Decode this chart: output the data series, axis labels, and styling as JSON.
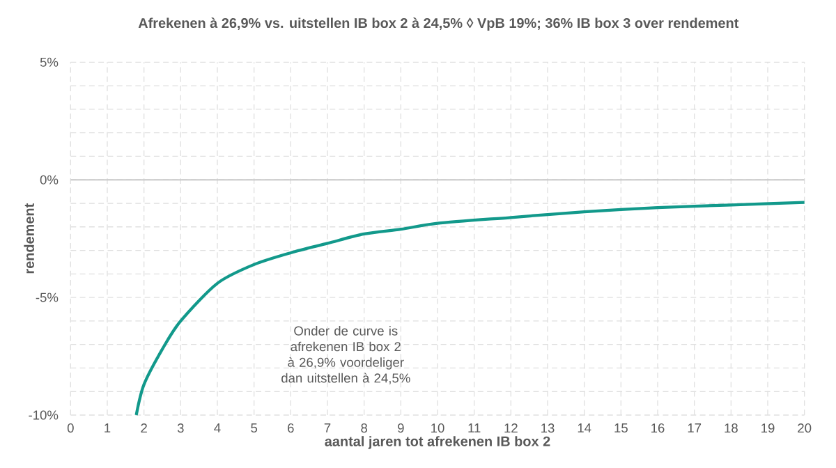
{
  "chart_data": {
    "type": "line",
    "title": "Afrekenen à 26,9% vs. uitstellen IB box 2 à 24,5% ◊ VpB 19%; 36% IB box 3 over rendement",
    "xlabel": "aantal jaren tot afrekenen IB box 2",
    "ylabel": "rendement",
    "x": [
      1.79,
      2,
      2.5,
      3,
      4,
      5,
      6,
      7,
      8,
      9,
      10,
      12,
      14,
      16,
      18,
      20
    ],
    "series": [
      {
        "color": "#12998b",
        "values": [
          -10,
          -8.7,
          -7.2,
          -6.0,
          -4.4,
          -3.6,
          -3.1,
          -2.7,
          -2.3,
          -2.1,
          -1.85,
          -1.6,
          -1.36,
          -1.18,
          -1.07,
          -0.96
        ]
      }
    ],
    "xlim": [
      0,
      20
    ],
    "ylim": [
      -10,
      5
    ],
    "xticks": [
      0,
      1,
      2,
      3,
      4,
      5,
      6,
      7,
      8,
      9,
      10,
      11,
      12,
      13,
      14,
      15,
      16,
      17,
      18,
      19,
      20
    ],
    "yticks": [
      {
        "value": -10,
        "label": "-10%"
      },
      {
        "value": -9,
        "label": null
      },
      {
        "value": -8,
        "label": null
      },
      {
        "value": -7,
        "label": null
      },
      {
        "value": -6,
        "label": null
      },
      {
        "value": -5,
        "label": "-5%"
      },
      {
        "value": -4,
        "label": null
      },
      {
        "value": -3,
        "label": null
      },
      {
        "value": -2,
        "label": null
      },
      {
        "value": -1,
        "label": null
      },
      {
        "value": 0,
        "label": "0%"
      },
      {
        "value": 1,
        "label": null
      },
      {
        "value": 2,
        "label": null
      },
      {
        "value": 3,
        "label": null
      },
      {
        "value": 4,
        "label": null
      },
      {
        "value": 5,
        "label": "5%"
      }
    ],
    "grid": true,
    "ref_lines": [
      {
        "axis": "y",
        "value": 0,
        "color": "#c8c8c8"
      }
    ],
    "annotations": [
      "Onder de curve is afrekenen IB box 2 à 26,9% voordeliger dan uitstellen à 24,5%"
    ]
  }
}
